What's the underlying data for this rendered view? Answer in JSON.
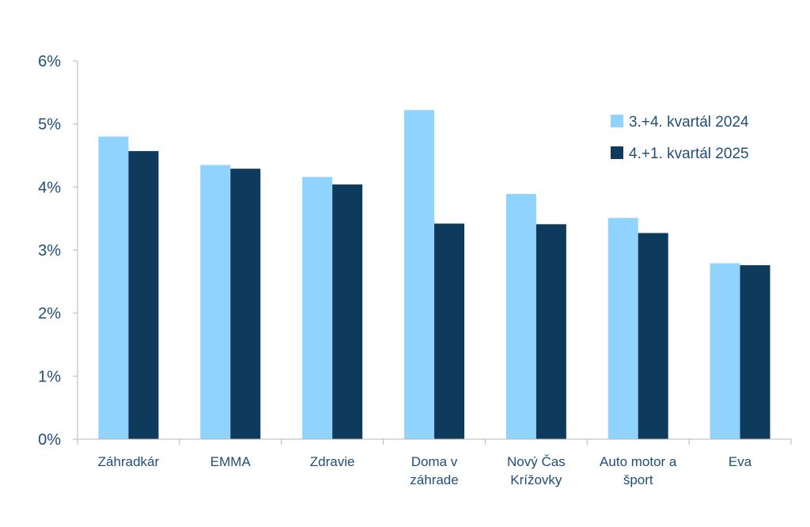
{
  "chart_data": {
    "type": "bar",
    "categories": [
      [
        "Záhradkár"
      ],
      [
        "EMMA"
      ],
      [
        "Zdravie"
      ],
      [
        "Doma v",
        "záhrade"
      ],
      [
        "Nový Čas",
        "Krížovky"
      ],
      [
        "Auto motor a",
        "šport"
      ],
      [
        "Eva"
      ]
    ],
    "series": [
      {
        "name": "3.+4. kvartál 2024",
        "color": "#8fd3fe",
        "values": [
          4.8,
          4.35,
          4.16,
          5.22,
          3.89,
          3.51,
          2.79
        ]
      },
      {
        "name": "4.+1. kvartál 2025",
        "color": "#0e3a5c",
        "values": [
          4.57,
          4.29,
          4.04,
          3.42,
          3.41,
          3.27,
          2.76
        ]
      }
    ],
    "yticks": [
      "0%",
      "1%",
      "2%",
      "3%",
      "4%",
      "5%",
      "6%"
    ],
    "ylim": [
      0,
      6
    ],
    "legend_position": "top-right",
    "grid": false
  }
}
